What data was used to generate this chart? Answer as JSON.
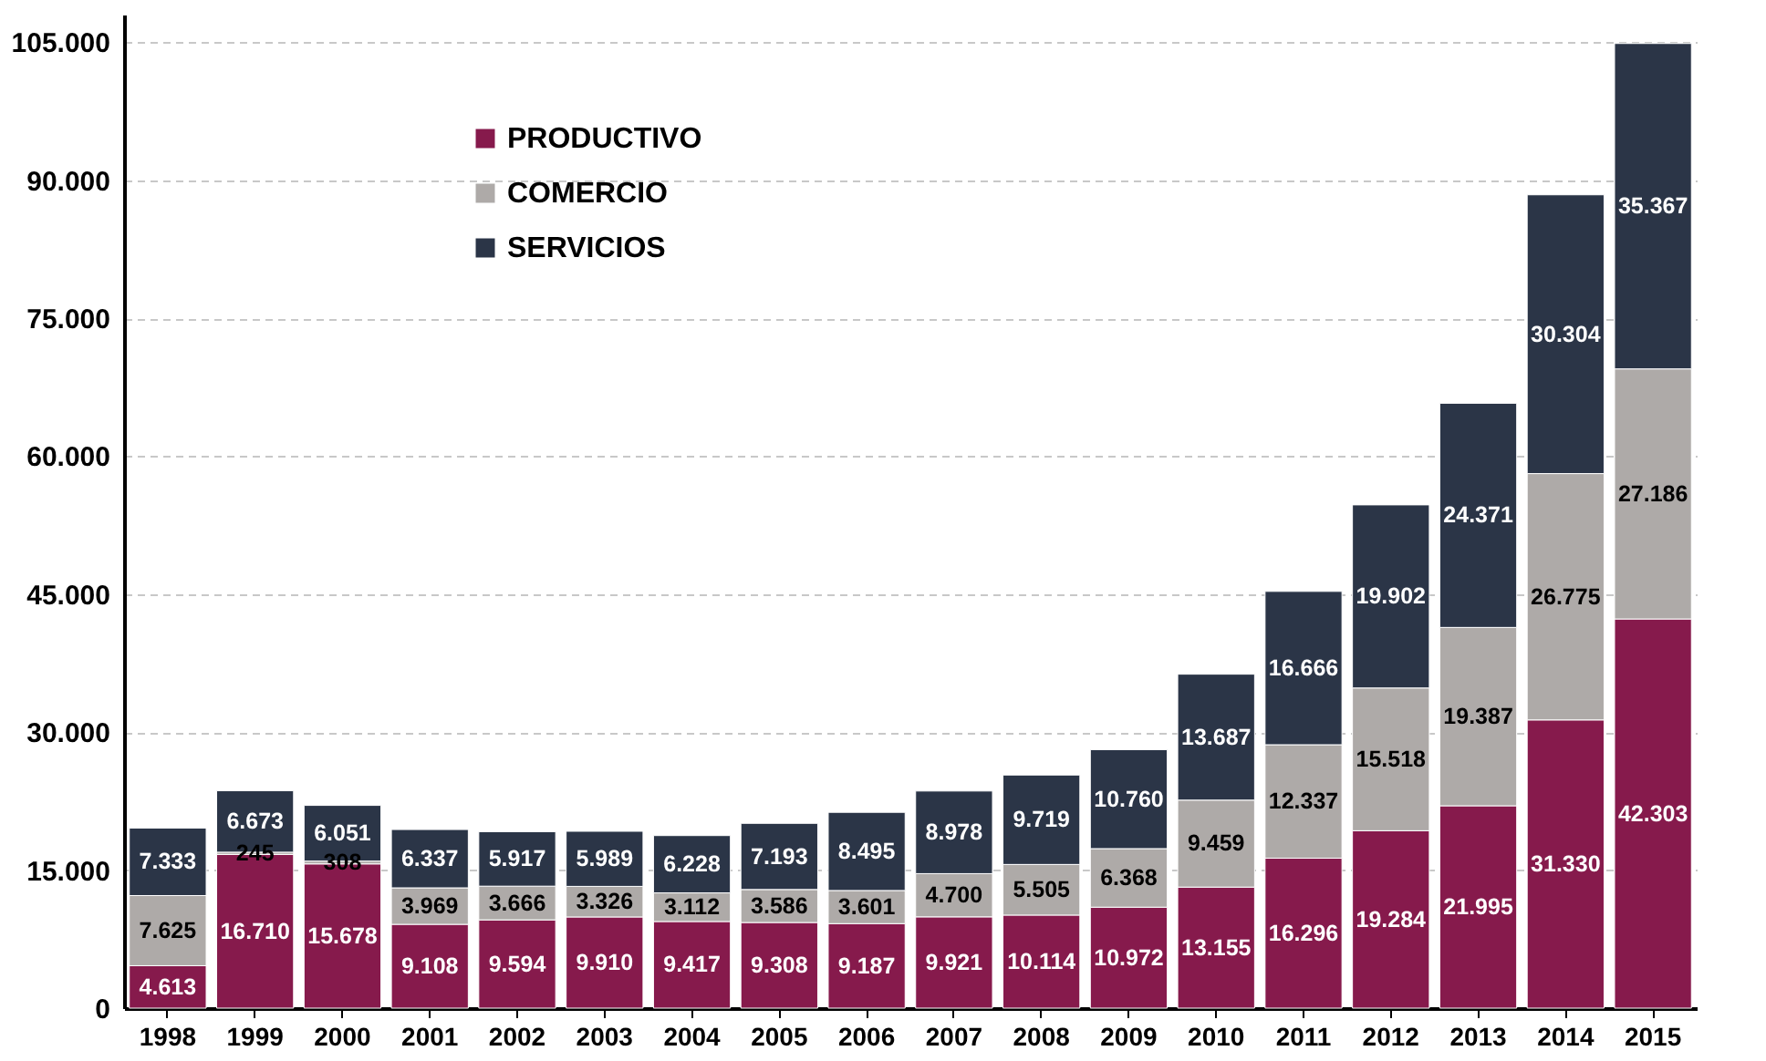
{
  "chart_data": {
    "type": "bar",
    "stacked": true,
    "categories": [
      "1998",
      "1999",
      "2000",
      "2001",
      "2002",
      "2003",
      "2004",
      "2005",
      "2006",
      "2007",
      "2008",
      "2009",
      "2010",
      "2011",
      "2012",
      "2013",
      "2014",
      "2015"
    ],
    "series": [
      {
        "name": "PRODUCTIVO",
        "color": "#861a4c",
        "values": [
          4613,
          16710,
          15678,
          9108,
          9594,
          9910,
          9417,
          9308,
          9187,
          9921,
          10114,
          10972,
          13155,
          16296,
          19284,
          21995,
          31330,
          42303
        ],
        "value_labels": [
          "4.613",
          "16.710",
          "15.678",
          "9.108",
          "9.594",
          "9.910",
          "9.417",
          "9.308",
          "9.187",
          "9.921",
          "10.114",
          "10.972",
          "13.155",
          "16.296",
          "19.284",
          "21.995",
          "31.330",
          "42.303"
        ]
      },
      {
        "name": "COMERCIO",
        "color": "#aeaaa8",
        "values": [
          7625,
          245,
          308,
          3969,
          3666,
          3326,
          3112,
          3586,
          3601,
          4700,
          5505,
          6368,
          9459,
          12337,
          15518,
          19387,
          26775,
          27186
        ],
        "value_labels": [
          "7.625",
          "245",
          "308",
          "3.969",
          "3.666",
          "3.326",
          "3.112",
          "3.586",
          "3.601",
          "4.700",
          "5.505",
          "6.368",
          "9.459",
          "12.337",
          "15.518",
          "19.387",
          "26.775",
          "27.186"
        ]
      },
      {
        "name": "SERVICIOS",
        "color": "#2b3547",
        "values": [
          7333,
          6673,
          6051,
          6337,
          5917,
          5989,
          6228,
          7193,
          8495,
          8978,
          9719,
          10760,
          13687,
          16666,
          19902,
          24371,
          30304,
          35367
        ],
        "value_labels": [
          "7.333",
          "6.673",
          "6.051",
          "6.337",
          "5.917",
          "5.989",
          "6.228",
          "7.193",
          "8.495",
          "8.978",
          "9.719",
          "10.760",
          "13.687",
          "16.666",
          "19.902",
          "24.371",
          "30.304",
          "35.367"
        ]
      }
    ],
    "ylim": [
      0,
      108000
    ],
    "yticks": [
      {
        "value": 0,
        "label": "0"
      },
      {
        "value": 15000,
        "label": "15.000"
      },
      {
        "value": 30000,
        "label": "30.000"
      },
      {
        "value": 45000,
        "label": "45.000"
      },
      {
        "value": 60000,
        "label": "60.000"
      },
      {
        "value": 75000,
        "label": "75.000"
      },
      {
        "value": 90000,
        "label": "90.000"
      },
      {
        "value": 105000,
        "label": "105.000"
      }
    ],
    "grid": "y",
    "legend": "top left"
  }
}
